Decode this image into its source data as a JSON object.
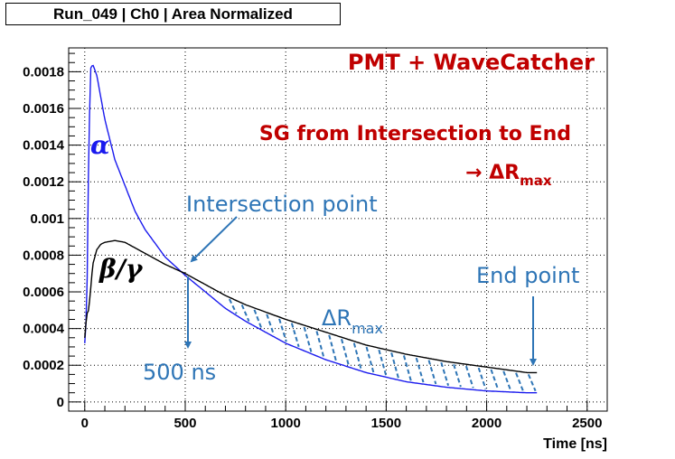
{
  "header": {
    "title": "Run_049 | Ch0 | Area Normalized"
  },
  "colors": {
    "alpha": "#1a1aee",
    "beta": "#000000",
    "annotation_red": "#c00000",
    "annotation_blue": "#2e75b6",
    "hatch": "#2e75b6"
  },
  "annotations": {
    "pmt": "PMT + WaveCatcher",
    "sg_method": "SG from Intersection to End",
    "arrow_glyph": "→",
    "delta_r": "ΔR",
    "delta_r_sub": "max",
    "intersection": "Intersection point",
    "end_point": "End point",
    "ns500": "500 ns",
    "alpha_label": "α",
    "beta_label": "β/γ"
  },
  "chart_data": {
    "type": "line",
    "title": "Run_049 | Ch0 | Area Normalized",
    "xlabel": "Time [ns]",
    "ylabel": "",
    "xlim": [
      -80,
      2600
    ],
    "ylim": [
      -5e-05,
      0.00193
    ],
    "x_ticks": [
      0,
      500,
      1000,
      1500,
      2000,
      2500
    ],
    "x_tick_labels": [
      "0",
      "500",
      "1000",
      "1500",
      "2000",
      "2500"
    ],
    "y_ticks": [
      0,
      0.0002,
      0.0004,
      0.0006,
      0.0008,
      0.001,
      0.0012,
      0.0014,
      0.0016,
      0.0018
    ],
    "y_tick_labels": [
      "0",
      "0.0002",
      "0.0004",
      "0.0006",
      "0.0008",
      "0.001",
      "0.0012",
      "0.0014",
      "0.0016",
      "0.0018"
    ],
    "grid": true,
    "series": [
      {
        "name": "α",
        "x": [
          0,
          10,
          20,
          30,
          40,
          60,
          80,
          100,
          150,
          200,
          250,
          300,
          400,
          500,
          600,
          700,
          800,
          1000,
          1200,
          1400,
          1600,
          1800,
          2000,
          2200,
          2250
        ],
        "y": [
          0.00032,
          0.0005,
          0.0014,
          0.00182,
          0.00184,
          0.00178,
          0.00166,
          0.00154,
          0.00132,
          0.00118,
          0.00104,
          0.00094,
          0.00079,
          0.00069,
          0.0006,
          0.00051,
          0.00044,
          0.00032,
          0.00023,
          0.00016,
          0.00011,
          8e-05,
          6e-05,
          5e-05,
          5e-05
        ]
      },
      {
        "name": "β/γ",
        "x": [
          0,
          10,
          20,
          40,
          60,
          80,
          100,
          150,
          200,
          250,
          300,
          400,
          500,
          600,
          700,
          800,
          1000,
          1200,
          1400,
          1600,
          1800,
          2000,
          2200,
          2250
        ],
        "y": [
          0.00035,
          0.00048,
          0.0005,
          0.00075,
          0.00083,
          0.00086,
          0.00087,
          0.00088,
          0.00087,
          0.00084,
          0.00081,
          0.00075,
          0.0007,
          0.00064,
          0.00058,
          0.00053,
          0.00045,
          0.00038,
          0.00031,
          0.00026,
          0.00022,
          0.00019,
          0.00016,
          0.00016
        ]
      }
    ],
    "hatch_range": [
      500,
      2250
    ],
    "intersection_x": 500,
    "end_x": 2250
  }
}
